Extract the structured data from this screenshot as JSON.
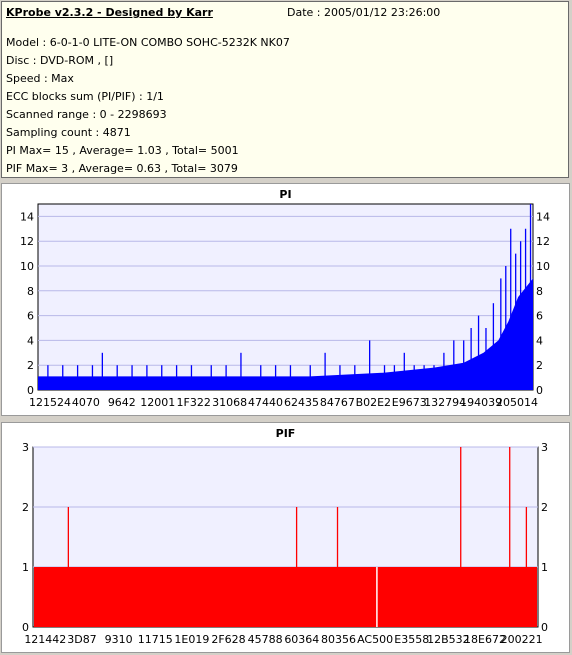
{
  "header": {
    "title": "KProbe v2.3.2 - Designed by Karr",
    "date": "Date : 2005/01/12 23:26:00",
    "lines": [
      "Model : 6-0-1-0 LITE-ON COMBO SOHC-5232K NK07",
      "Disc : DVD-ROM ,  []",
      "Speed : Max",
      "ECC blocks sum (PI/PIF) : 1/1",
      "Scanned range : 0 - 2298693",
      "Sampling count : 4871",
      "PI Max= 15 , Average= 1.03 , Total= 5001",
      "PIF Max= 3 , Average= 0.63 , Total= 3079"
    ]
  },
  "colors": {
    "pi": "#0000ff",
    "pif": "#ff0000",
    "plot_bg": "#f0f0ff",
    "grid": "#b8b8e8"
  },
  "chart_data": [
    {
      "type": "bar",
      "title": "PI",
      "ylim": [
        0,
        15
      ],
      "yticks": [
        0,
        2,
        4,
        6,
        8,
        10,
        12,
        14
      ],
      "xticklabels": [
        "121524",
        "4070",
        "9642",
        "12001",
        "1F322",
        "31068",
        "47440",
        "62435",
        "84767",
        "B02E2",
        "E9673",
        "132794",
        "194039",
        "205014"
      ],
      "grid": true,
      "envelope": [
        {
          "x": 0.0,
          "y": 1.1
        },
        {
          "x": 0.55,
          "y": 1.1
        },
        {
          "x": 0.7,
          "y": 1.4
        },
        {
          "x": 0.8,
          "y": 1.8
        },
        {
          "x": 0.86,
          "y": 2.2
        },
        {
          "x": 0.9,
          "y": 3.0
        },
        {
          "x": 0.93,
          "y": 4.0
        },
        {
          "x": 0.95,
          "y": 5.5
        },
        {
          "x": 0.97,
          "y": 7.5
        },
        {
          "x": 1.0,
          "y": 9.0
        }
      ],
      "spikes": [
        {
          "x": 0.02,
          "y": 2
        },
        {
          "x": 0.05,
          "y": 2
        },
        {
          "x": 0.08,
          "y": 2
        },
        {
          "x": 0.11,
          "y": 2
        },
        {
          "x": 0.13,
          "y": 3
        },
        {
          "x": 0.16,
          "y": 2
        },
        {
          "x": 0.19,
          "y": 2
        },
        {
          "x": 0.22,
          "y": 2
        },
        {
          "x": 0.25,
          "y": 2
        },
        {
          "x": 0.28,
          "y": 2
        },
        {
          "x": 0.31,
          "y": 2
        },
        {
          "x": 0.35,
          "y": 2
        },
        {
          "x": 0.38,
          "y": 2
        },
        {
          "x": 0.41,
          "y": 3
        },
        {
          "x": 0.45,
          "y": 2
        },
        {
          "x": 0.48,
          "y": 2
        },
        {
          "x": 0.51,
          "y": 2
        },
        {
          "x": 0.55,
          "y": 2
        },
        {
          "x": 0.58,
          "y": 3
        },
        {
          "x": 0.61,
          "y": 2
        },
        {
          "x": 0.64,
          "y": 2
        },
        {
          "x": 0.67,
          "y": 4
        },
        {
          "x": 0.7,
          "y": 2
        },
        {
          "x": 0.72,
          "y": 2
        },
        {
          "x": 0.74,
          "y": 3
        },
        {
          "x": 0.76,
          "y": 2
        },
        {
          "x": 0.78,
          "y": 2
        },
        {
          "x": 0.8,
          "y": 2
        },
        {
          "x": 0.82,
          "y": 3
        },
        {
          "x": 0.84,
          "y": 4
        },
        {
          "x": 0.86,
          "y": 4
        },
        {
          "x": 0.875,
          "y": 5
        },
        {
          "x": 0.89,
          "y": 6
        },
        {
          "x": 0.905,
          "y": 5
        },
        {
          "x": 0.92,
          "y": 7
        },
        {
          "x": 0.935,
          "y": 9
        },
        {
          "x": 0.945,
          "y": 10
        },
        {
          "x": 0.955,
          "y": 13
        },
        {
          "x": 0.965,
          "y": 11
        },
        {
          "x": 0.975,
          "y": 12
        },
        {
          "x": 0.985,
          "y": 13
        },
        {
          "x": 0.995,
          "y": 15
        }
      ]
    },
    {
      "type": "bar",
      "title": "PIF",
      "ylim": [
        0,
        3
      ],
      "yticks": [
        0,
        1,
        2,
        3
      ],
      "xticklabels": [
        "121442",
        "3D87",
        "9310",
        "11715",
        "1E019",
        "2F628",
        "45788",
        "60364",
        "80356",
        "AC500",
        "E3558",
        "12B532",
        "18E672",
        "200221"
      ],
      "grid": true,
      "baseline": 1,
      "gaps": [
        0.681
      ],
      "spikes": [
        {
          "x": 0.07,
          "y": 2
        },
        {
          "x": 0.522,
          "y": 2
        },
        {
          "x": 0.603,
          "y": 2
        },
        {
          "x": 0.847,
          "y": 3
        },
        {
          "x": 0.944,
          "y": 3
        },
        {
          "x": 0.977,
          "y": 2
        }
      ]
    }
  ]
}
